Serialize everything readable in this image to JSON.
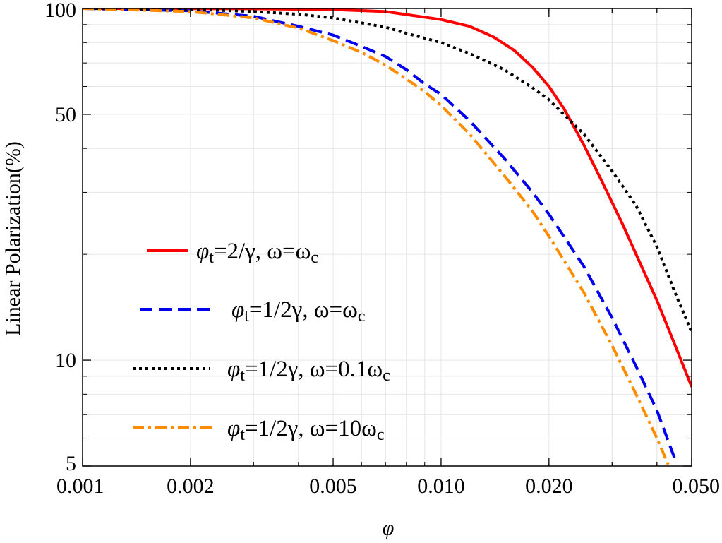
{
  "chart_data": {
    "type": "line",
    "title": "",
    "xlabel": "φ",
    "ylabel": "Linear Polarization(%)",
    "xscale": "log",
    "yscale": "log",
    "xlim": [
      0.001,
      0.05
    ],
    "ylim": [
      5,
      100
    ],
    "x_ticks": [
      {
        "value": 0.001,
        "label": "0.001"
      },
      {
        "value": 0.002,
        "label": "0.002"
      },
      {
        "value": 0.005,
        "label": "0.005"
      },
      {
        "value": 0.01,
        "label": "0.010"
      },
      {
        "value": 0.02,
        "label": "0.020"
      },
      {
        "value": 0.05,
        "label": "0.050"
      }
    ],
    "y_ticks": [
      {
        "value": 100,
        "label": "100"
      },
      {
        "value": 50,
        "label": "50"
      },
      {
        "value": 10,
        "label": "10"
      },
      {
        "value": 5,
        "label": "5"
      }
    ],
    "legend_position": "center-left",
    "series": [
      {
        "name": "red-solid",
        "legend": {
          "sym": "φ",
          "sub": "t",
          "rest": "=2/γ, ω=ω",
          "sub2": "c"
        },
        "color": "#ff0000",
        "dash": "solid",
        "x": [
          0.001,
          0.003,
          0.005,
          0.007,
          0.01,
          0.012,
          0.014,
          0.016,
          0.018,
          0.02,
          0.022,
          0.025,
          0.028,
          0.032,
          0.035,
          0.04,
          0.045,
          0.05
        ],
        "y": [
          100,
          99.8,
          99.3,
          98,
          93,
          89,
          83,
          76,
          68,
          60,
          52,
          41,
          32.5,
          24.5,
          20,
          14.8,
          11,
          8.4
        ]
      },
      {
        "name": "blue-dashed",
        "legend": {
          "sym": "φ",
          "sub": "t",
          "rest": "=1/2γ, ω=ω",
          "sub2": "c"
        },
        "color": "#0000ee",
        "dash": "dashed",
        "x": [
          0.001,
          0.002,
          0.003,
          0.004,
          0.005,
          0.006,
          0.007,
          0.008,
          0.009,
          0.01,
          0.012,
          0.015,
          0.018,
          0.02,
          0.025,
          0.03,
          0.035,
          0.04,
          0.045
        ],
        "y": [
          100,
          98.5,
          95,
          89,
          84,
          78,
          73,
          67,
          61,
          57,
          48,
          37.5,
          30,
          26,
          18.5,
          13.2,
          9.6,
          7.2,
          5.2
        ]
      },
      {
        "name": "black-dotted",
        "legend": {
          "sym": "φ",
          "sub": "t",
          "rest": "=1/2γ, ω=0.1ω",
          "sub2": "c"
        },
        "color": "#000000",
        "dash": "dotted",
        "x": [
          0.001,
          0.002,
          0.003,
          0.004,
          0.005,
          0.006,
          0.007,
          0.008,
          0.01,
          0.012,
          0.015,
          0.018,
          0.02,
          0.025,
          0.03,
          0.035,
          0.04,
          0.045,
          0.05
        ],
        "y": [
          100,
          99.5,
          98,
          96.3,
          94,
          91,
          88.5,
          85,
          80,
          74.5,
          67,
          59.5,
          55,
          44,
          34.5,
          27.5,
          21,
          15.5,
          12
        ]
      },
      {
        "name": "orange-dashdot",
        "legend": {
          "sym": "φ",
          "sub": "t",
          "rest": "=1/2γ, ω=10ω",
          "sub2": "c"
        },
        "color": "#ff8c00",
        "dash": "dashdot",
        "x": [
          0.001,
          0.002,
          0.003,
          0.004,
          0.005,
          0.006,
          0.007,
          0.008,
          0.009,
          0.01,
          0.012,
          0.015,
          0.018,
          0.02,
          0.025,
          0.03,
          0.035,
          0.04,
          0.043
        ],
        "y": [
          100,
          98,
          94,
          88,
          81,
          75,
          69,
          63,
          58,
          53,
          44,
          33.5,
          26.5,
          22.5,
          15.6,
          11,
          8,
          6,
          5.05
        ]
      }
    ]
  }
}
